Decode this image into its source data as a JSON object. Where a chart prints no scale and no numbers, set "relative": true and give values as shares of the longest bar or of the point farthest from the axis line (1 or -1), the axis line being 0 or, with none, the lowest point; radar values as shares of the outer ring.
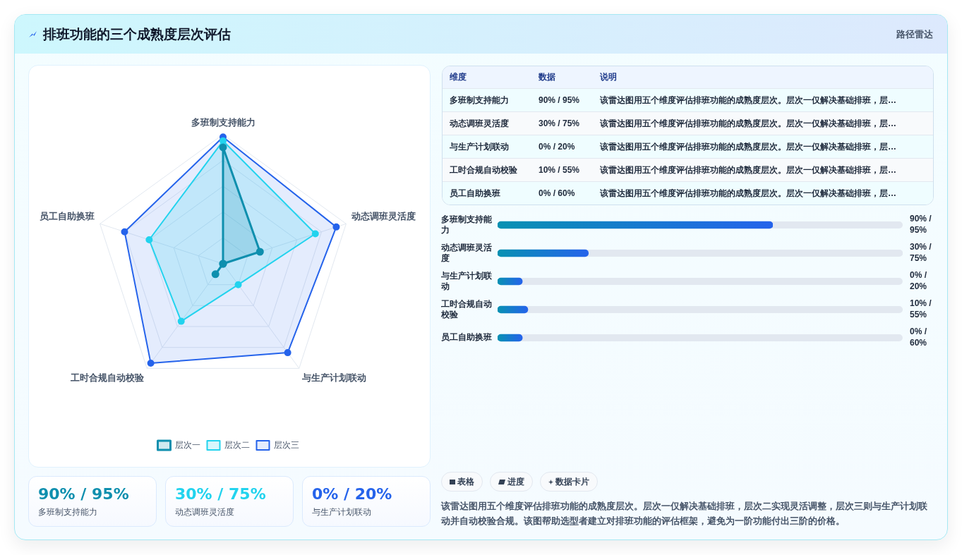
{
  "chart_data": [
    {
      "type": "other",
      "title": "排班功能的三个成熟度层次评估",
      "subtitle": "路径雷达"
    },
    {
      "type": "radar",
      "relative": true,
      "categories": [
        "多班制支持能力",
        "动态调班灵活度",
        "与生产计划联动",
        "工时合规自动校验",
        "员工自助换班"
      ],
      "series": [
        {
          "name": "层次一",
          "color": "#0e8fae",
          "values": [
            0.9,
            0.3,
            0,
            0.1,
            0
          ]
        },
        {
          "name": "层次二",
          "color": "#22d3ee",
          "values": [
            0.95,
            0.75,
            0.2,
            0.55,
            0.6
          ]
        },
        {
          "name": "层次三",
          "color": "#2563eb",
          "values": [
            0.98,
            0.92,
            0.85,
            0.95,
            0.8
          ]
        }
      ],
      "grid": true,
      "legend": "bottom",
      "marker": "circle"
    },
    {
      "type": "other",
      "annotations": [
        "维度",
        "数据",
        "说明",
        "多班制支持能力",
        "90% / 95%",
        "该雷达图用五个维度评估排班功能的成熟度层次。层次一仅解决基础排班，层…",
        "动态调班灵活度",
        "30% / 75%",
        "该雷达图用五个维度评估排班功能的成熟度层次。层次一仅解决基础排班，层…",
        "与生产计划联动",
        "0% / 20%",
        "该雷达图用五个维度评估排班功能的成熟度层次。层次一仅解决基础排班，层…",
        "工时合规自动校验",
        "10% / 55%",
        "该雷达图用五个维度评估排班功能的成熟度层次。层次一仅解决基础排班，层…",
        "员工自助换班",
        "0% / 60%",
        "该雷达图用五个维度评估排班功能的成熟度层次。层次一仅解决基础排班，层…"
      ]
    },
    {
      "type": "bar",
      "orientation": "horizontal",
      "relative": true,
      "categories": [
        "多班制支持能力",
        "动态调班灵活度",
        "与生产计划联动",
        "工时合规自动校验",
        "员工自助换班"
      ],
      "values": [
        1,
        0.33,
        0.09,
        0.11,
        0.09
      ],
      "color": "#2563eb",
      "annotations": [
        "90% / 95%",
        "30% / 75%",
        "0% / 20%",
        "10% / 55%",
        "0% / 60%"
      ]
    },
    {
      "type": "other",
      "annotations": [
        "90% / 95%",
        "多班制支持能力",
        "30% / 75%",
        "动态调班灵活度",
        "0% / 20%",
        "与生产计划联动"
      ],
      "colors": [
        "#0e8fae",
        "#22d3ee",
        "#2563eb"
      ]
    },
    {
      "type": "other",
      "annotations": [
        "表格",
        "进度",
        "数据卡片",
        "该雷达图用五个维度评估排班功能的成熟度层次。层次一仅解决基础排班，层次二实现灵活调整，层次三则与生产计划联动并自动校验合规。该图帮助选型者建立对排班功能的评估框架，避免为一阶功能付出三阶的价格。"
      ]
    }
  ]
}
